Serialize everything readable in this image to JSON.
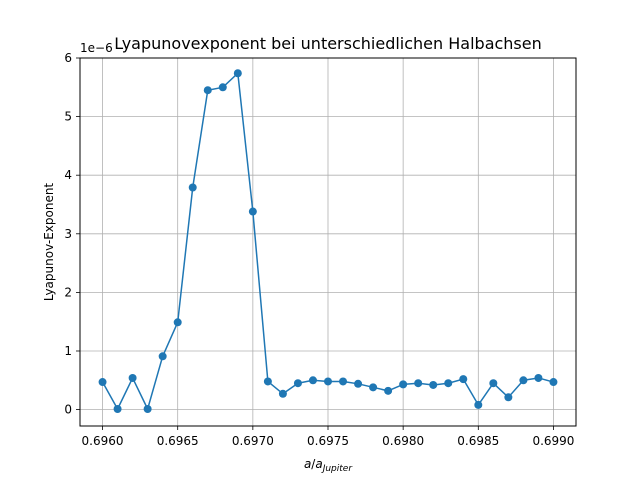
{
  "chart_data": {
    "type": "line",
    "title": "Lyapunovexponent bei unterschiedlichen Halbachsen",
    "xlabel_main": "a",
    "xlabel_sep": "/",
    "xlabel_base": "a",
    "xlabel_sub": "Jupiter",
    "ylabel": "Lyapunov-Exponent",
    "y_offset_text": "1e−6",
    "y_scale": 1e-06,
    "xlim": [
      0.69585,
      0.69915
    ],
    "ylim": [
      -0.28,
      6.0
    ],
    "grid": true,
    "marker": "circle",
    "color": "#1f77b4",
    "x_ticks": [
      0.696,
      0.6965,
      0.697,
      0.6975,
      0.698,
      0.6985,
      0.699
    ],
    "x_tick_labels": [
      "0.6960",
      "0.6965",
      "0.6970",
      "0.6975",
      "0.6980",
      "0.6985",
      "0.6990"
    ],
    "y_ticks": [
      0,
      1,
      2,
      3,
      4,
      5,
      6
    ],
    "y_tick_labels": [
      "0",
      "1",
      "2",
      "3",
      "4",
      "5",
      "6"
    ],
    "x": [
      0.696,
      0.6961,
      0.6962,
      0.6963,
      0.6964,
      0.6965,
      0.6966,
      0.6967,
      0.6968,
      0.6969,
      0.697,
      0.6971,
      0.6972,
      0.6973,
      0.6974,
      0.6975,
      0.6976,
      0.6977,
      0.6978,
      0.6979,
      0.698,
      0.6981,
      0.6982,
      0.6983,
      0.6984,
      0.6985,
      0.6986,
      0.6987,
      0.6988,
      0.6989,
      0.699
    ],
    "values": [
      0.47,
      0.01,
      0.54,
      0.01,
      0.91,
      1.49,
      3.79,
      5.45,
      5.5,
      5.74,
      3.38,
      0.48,
      0.27,
      0.45,
      0.5,
      0.48,
      0.48,
      0.44,
      0.38,
      0.32,
      0.43,
      0.45,
      0.42,
      0.45,
      0.52,
      0.08,
      0.45,
      0.21,
      0.5,
      0.54,
      0.47
    ]
  }
}
